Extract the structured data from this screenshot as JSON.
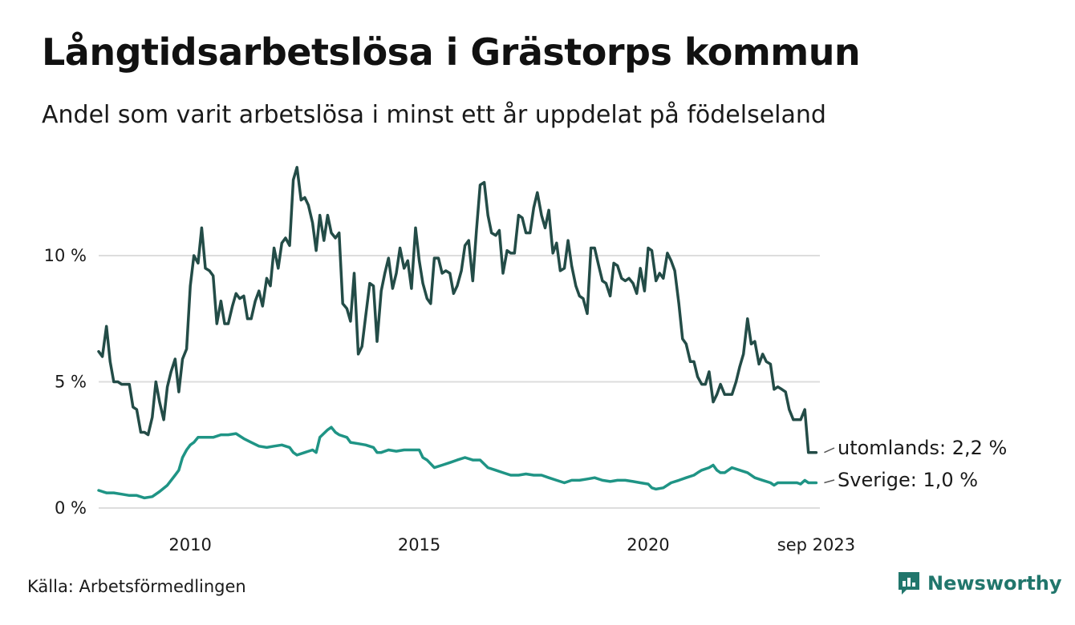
{
  "title": "Långtidsarbetslösa i Grästorps kommun",
  "subtitle": "Andel som varit arbetslösa i minst ett år uppdelat på födelseland",
  "source": "Källa: Arbetsförmedlingen",
  "brand": "Newsworthy",
  "colors": {
    "utomlands": "#234c47",
    "sverige": "#1f9485",
    "grid": "#dddddd",
    "brand": "#21766c"
  },
  "chart_data": {
    "type": "line",
    "title": "Långtidsarbetslösa i Grästorps kommun",
    "xlabel": "",
    "ylabel": "",
    "ylim": [
      0,
      14
    ],
    "xlim": [
      2008.0,
      2023.75
    ],
    "y_ticks": [
      {
        "value": 0,
        "label": "0 %"
      },
      {
        "value": 5,
        "label": "5 %"
      },
      {
        "value": 10,
        "label": "10 %"
      }
    ],
    "x_ticks": [
      {
        "value": 2010,
        "label": "2010"
      },
      {
        "value": 2015,
        "label": "2015"
      },
      {
        "value": 2020,
        "label": "2020"
      },
      {
        "value": 2023.67,
        "label": "sep 2023"
      }
    ],
    "grid": true,
    "series": [
      {
        "name": "utomlands",
        "end_label": "utomlands: 2,2 %",
        "points": [
          [
            2008.0,
            6.2
          ],
          [
            2008.08,
            6.0
          ],
          [
            2008.17,
            7.2
          ],
          [
            2008.25,
            5.8
          ],
          [
            2008.33,
            5.0
          ],
          [
            2008.42,
            5.0
          ],
          [
            2008.5,
            4.9
          ],
          [
            2008.67,
            4.9
          ],
          [
            2008.75,
            4.0
          ],
          [
            2008.83,
            3.9
          ],
          [
            2008.92,
            3.0
          ],
          [
            2009.0,
            3.0
          ],
          [
            2009.08,
            2.9
          ],
          [
            2009.17,
            3.6
          ],
          [
            2009.25,
            5.0
          ],
          [
            2009.33,
            4.2
          ],
          [
            2009.42,
            3.5
          ],
          [
            2009.5,
            4.8
          ],
          [
            2009.58,
            5.4
          ],
          [
            2009.67,
            5.9
          ],
          [
            2009.75,
            4.6
          ],
          [
            2009.83,
            5.9
          ],
          [
            2009.92,
            6.3
          ],
          [
            2010.0,
            8.8
          ],
          [
            2010.08,
            10.0
          ],
          [
            2010.17,
            9.7
          ],
          [
            2010.25,
            11.1
          ],
          [
            2010.33,
            9.5
          ],
          [
            2010.42,
            9.4
          ],
          [
            2010.5,
            9.2
          ],
          [
            2010.58,
            7.3
          ],
          [
            2010.67,
            8.2
          ],
          [
            2010.75,
            7.3
          ],
          [
            2010.83,
            7.3
          ],
          [
            2010.92,
            8.0
          ],
          [
            2011.0,
            8.5
          ],
          [
            2011.08,
            8.3
          ],
          [
            2011.17,
            8.4
          ],
          [
            2011.25,
            7.5
          ],
          [
            2011.33,
            7.5
          ],
          [
            2011.42,
            8.2
          ],
          [
            2011.5,
            8.6
          ],
          [
            2011.58,
            8.0
          ],
          [
            2011.67,
            9.1
          ],
          [
            2011.75,
            8.8
          ],
          [
            2011.83,
            10.3
          ],
          [
            2011.92,
            9.5
          ],
          [
            2012.0,
            10.5
          ],
          [
            2012.08,
            10.7
          ],
          [
            2012.17,
            10.4
          ],
          [
            2012.25,
            13.0
          ],
          [
            2012.33,
            13.5
          ],
          [
            2012.42,
            12.2
          ],
          [
            2012.5,
            12.3
          ],
          [
            2012.58,
            12.0
          ],
          [
            2012.67,
            11.3
          ],
          [
            2012.75,
            10.2
          ],
          [
            2012.83,
            11.6
          ],
          [
            2012.92,
            10.6
          ],
          [
            2013.0,
            11.6
          ],
          [
            2013.08,
            10.9
          ],
          [
            2013.17,
            10.7
          ],
          [
            2013.25,
            10.9
          ],
          [
            2013.33,
            8.1
          ],
          [
            2013.42,
            7.9
          ],
          [
            2013.5,
            7.4
          ],
          [
            2013.58,
            9.3
          ],
          [
            2013.67,
            6.1
          ],
          [
            2013.75,
            6.4
          ],
          [
            2013.83,
            7.6
          ],
          [
            2013.92,
            8.9
          ],
          [
            2014.0,
            8.8
          ],
          [
            2014.08,
            6.6
          ],
          [
            2014.17,
            8.6
          ],
          [
            2014.25,
            9.3
          ],
          [
            2014.33,
            9.9
          ],
          [
            2014.42,
            8.7
          ],
          [
            2014.5,
            9.3
          ],
          [
            2014.58,
            10.3
          ],
          [
            2014.67,
            9.5
          ],
          [
            2014.75,
            9.8
          ],
          [
            2014.83,
            8.7
          ],
          [
            2014.92,
            11.1
          ],
          [
            2015.0,
            9.8
          ],
          [
            2015.08,
            8.9
          ],
          [
            2015.17,
            8.3
          ],
          [
            2015.25,
            8.1
          ],
          [
            2015.33,
            9.9
          ],
          [
            2015.42,
            9.9
          ],
          [
            2015.5,
            9.3
          ],
          [
            2015.58,
            9.4
          ],
          [
            2015.67,
            9.3
          ],
          [
            2015.75,
            8.5
          ],
          [
            2015.83,
            8.8
          ],
          [
            2015.92,
            9.4
          ],
          [
            2016.0,
            10.4
          ],
          [
            2016.08,
            10.6
          ],
          [
            2016.17,
            9.0
          ],
          [
            2016.25,
            11.0
          ],
          [
            2016.33,
            12.8
          ],
          [
            2016.42,
            12.9
          ],
          [
            2016.5,
            11.6
          ],
          [
            2016.58,
            10.9
          ],
          [
            2016.67,
            10.8
          ],
          [
            2016.75,
            11.0
          ],
          [
            2016.83,
            9.3
          ],
          [
            2016.92,
            10.2
          ],
          [
            2017.0,
            10.1
          ],
          [
            2017.08,
            10.1
          ],
          [
            2017.17,
            11.6
          ],
          [
            2017.25,
            11.5
          ],
          [
            2017.33,
            10.9
          ],
          [
            2017.42,
            10.9
          ],
          [
            2017.5,
            11.9
          ],
          [
            2017.58,
            12.5
          ],
          [
            2017.67,
            11.6
          ],
          [
            2017.75,
            11.1
          ],
          [
            2017.83,
            11.8
          ],
          [
            2017.92,
            10.1
          ],
          [
            2018.0,
            10.5
          ],
          [
            2018.08,
            9.4
          ],
          [
            2018.17,
            9.5
          ],
          [
            2018.25,
            10.6
          ],
          [
            2018.33,
            9.6
          ],
          [
            2018.42,
            8.8
          ],
          [
            2018.5,
            8.4
          ],
          [
            2018.58,
            8.3
          ],
          [
            2018.67,
            7.7
          ],
          [
            2018.75,
            10.3
          ],
          [
            2018.83,
            10.3
          ],
          [
            2018.92,
            9.6
          ],
          [
            2019.0,
            9.0
          ],
          [
            2019.08,
            8.9
          ],
          [
            2019.17,
            8.4
          ],
          [
            2019.25,
            9.7
          ],
          [
            2019.33,
            9.6
          ],
          [
            2019.42,
            9.1
          ],
          [
            2019.5,
            9.0
          ],
          [
            2019.58,
            9.1
          ],
          [
            2019.67,
            8.9
          ],
          [
            2019.75,
            8.5
          ],
          [
            2019.83,
            9.5
          ],
          [
            2019.92,
            8.6
          ],
          [
            2020.0,
            10.3
          ],
          [
            2020.08,
            10.2
          ],
          [
            2020.17,
            9.0
          ],
          [
            2020.25,
            9.3
          ],
          [
            2020.33,
            9.1
          ],
          [
            2020.42,
            10.1
          ],
          [
            2020.5,
            9.8
          ],
          [
            2020.58,
            9.4
          ],
          [
            2020.67,
            8.1
          ],
          [
            2020.75,
            6.7
          ],
          [
            2020.83,
            6.5
          ],
          [
            2020.92,
            5.8
          ],
          [
            2021.0,
            5.8
          ],
          [
            2021.08,
            5.2
          ],
          [
            2021.17,
            4.9
          ],
          [
            2021.25,
            4.9
          ],
          [
            2021.33,
            5.4
          ],
          [
            2021.42,
            4.2
          ],
          [
            2021.5,
            4.5
          ],
          [
            2021.58,
            4.9
          ],
          [
            2021.67,
            4.5
          ],
          [
            2021.75,
            4.5
          ],
          [
            2021.83,
            4.5
          ],
          [
            2021.92,
            5.0
          ],
          [
            2022.0,
            5.6
          ],
          [
            2022.08,
            6.1
          ],
          [
            2022.17,
            7.5
          ],
          [
            2022.25,
            6.5
          ],
          [
            2022.33,
            6.6
          ],
          [
            2022.42,
            5.7
          ],
          [
            2022.5,
            6.1
          ],
          [
            2022.58,
            5.8
          ],
          [
            2022.67,
            5.7
          ],
          [
            2022.75,
            4.7
          ],
          [
            2022.83,
            4.8
          ],
          [
            2022.92,
            4.7
          ],
          [
            2023.0,
            4.6
          ],
          [
            2023.08,
            3.9
          ],
          [
            2023.17,
            3.5
          ],
          [
            2023.25,
            3.5
          ],
          [
            2023.33,
            3.5
          ],
          [
            2023.42,
            3.9
          ],
          [
            2023.5,
            2.2
          ],
          [
            2023.58,
            2.2
          ],
          [
            2023.67,
            2.2
          ]
        ]
      },
      {
        "name": "Sverige",
        "end_label": "Sverige: 1,0 %",
        "points": [
          [
            2008.0,
            0.7
          ],
          [
            2008.17,
            0.6
          ],
          [
            2008.33,
            0.6
          ],
          [
            2008.5,
            0.55
          ],
          [
            2008.67,
            0.5
          ],
          [
            2008.83,
            0.5
          ],
          [
            2009.0,
            0.4
          ],
          [
            2009.17,
            0.45
          ],
          [
            2009.33,
            0.65
          ],
          [
            2009.5,
            0.9
          ],
          [
            2009.67,
            1.3
          ],
          [
            2009.75,
            1.5
          ],
          [
            2009.83,
            2.0
          ],
          [
            2009.92,
            2.3
          ],
          [
            2010.0,
            2.5
          ],
          [
            2010.08,
            2.6
          ],
          [
            2010.17,
            2.8
          ],
          [
            2010.33,
            2.8
          ],
          [
            2010.5,
            2.8
          ],
          [
            2010.67,
            2.9
          ],
          [
            2010.83,
            2.9
          ],
          [
            2011.0,
            2.95
          ],
          [
            2011.17,
            2.75
          ],
          [
            2011.33,
            2.6
          ],
          [
            2011.5,
            2.45
          ],
          [
            2011.67,
            2.4
          ],
          [
            2011.83,
            2.45
          ],
          [
            2012.0,
            2.5
          ],
          [
            2012.17,
            2.4
          ],
          [
            2012.25,
            2.2
          ],
          [
            2012.33,
            2.1
          ],
          [
            2012.5,
            2.2
          ],
          [
            2012.67,
            2.3
          ],
          [
            2012.75,
            2.2
          ],
          [
            2012.83,
            2.8
          ],
          [
            2013.0,
            3.1
          ],
          [
            2013.08,
            3.2
          ],
          [
            2013.17,
            3.0
          ],
          [
            2013.25,
            2.9
          ],
          [
            2013.42,
            2.8
          ],
          [
            2013.5,
            2.6
          ],
          [
            2013.67,
            2.55
          ],
          [
            2013.83,
            2.5
          ],
          [
            2014.0,
            2.4
          ],
          [
            2014.08,
            2.2
          ],
          [
            2014.17,
            2.2
          ],
          [
            2014.33,
            2.3
          ],
          [
            2014.5,
            2.25
          ],
          [
            2014.67,
            2.3
          ],
          [
            2014.83,
            2.3
          ],
          [
            2015.0,
            2.3
          ],
          [
            2015.08,
            2.0
          ],
          [
            2015.17,
            1.9
          ],
          [
            2015.33,
            1.6
          ],
          [
            2015.5,
            1.7
          ],
          [
            2015.67,
            1.8
          ],
          [
            2015.83,
            1.9
          ],
          [
            2016.0,
            2.0
          ],
          [
            2016.17,
            1.9
          ],
          [
            2016.33,
            1.9
          ],
          [
            2016.5,
            1.6
          ],
          [
            2016.67,
            1.5
          ],
          [
            2016.83,
            1.4
          ],
          [
            2017.0,
            1.3
          ],
          [
            2017.17,
            1.3
          ],
          [
            2017.33,
            1.35
          ],
          [
            2017.5,
            1.3
          ],
          [
            2017.67,
            1.3
          ],
          [
            2017.83,
            1.2
          ],
          [
            2018.0,
            1.1
          ],
          [
            2018.17,
            1.0
          ],
          [
            2018.33,
            1.1
          ],
          [
            2018.5,
            1.1
          ],
          [
            2018.67,
            1.15
          ],
          [
            2018.83,
            1.2
          ],
          [
            2019.0,
            1.1
          ],
          [
            2019.17,
            1.05
          ],
          [
            2019.33,
            1.1
          ],
          [
            2019.5,
            1.1
          ],
          [
            2019.67,
            1.05
          ],
          [
            2019.83,
            1.0
          ],
          [
            2020.0,
            0.95
          ],
          [
            2020.08,
            0.8
          ],
          [
            2020.17,
            0.75
          ],
          [
            2020.33,
            0.8
          ],
          [
            2020.5,
            1.0
          ],
          [
            2020.67,
            1.1
          ],
          [
            2020.83,
            1.2
          ],
          [
            2021.0,
            1.3
          ],
          [
            2021.08,
            1.4
          ],
          [
            2021.17,
            1.5
          ],
          [
            2021.33,
            1.6
          ],
          [
            2021.42,
            1.7
          ],
          [
            2021.5,
            1.5
          ],
          [
            2021.58,
            1.4
          ],
          [
            2021.67,
            1.4
          ],
          [
            2021.83,
            1.6
          ],
          [
            2022.0,
            1.5
          ],
          [
            2022.17,
            1.4
          ],
          [
            2022.33,
            1.2
          ],
          [
            2022.5,
            1.1
          ],
          [
            2022.67,
            1.0
          ],
          [
            2022.75,
            0.9
          ],
          [
            2022.83,
            1.0
          ],
          [
            2023.0,
            1.0
          ],
          [
            2023.17,
            1.0
          ],
          [
            2023.25,
            1.0
          ],
          [
            2023.33,
            0.95
          ],
          [
            2023.42,
            1.1
          ],
          [
            2023.5,
            1.0
          ],
          [
            2023.58,
            1.0
          ],
          [
            2023.67,
            1.0
          ]
        ]
      }
    ]
  }
}
